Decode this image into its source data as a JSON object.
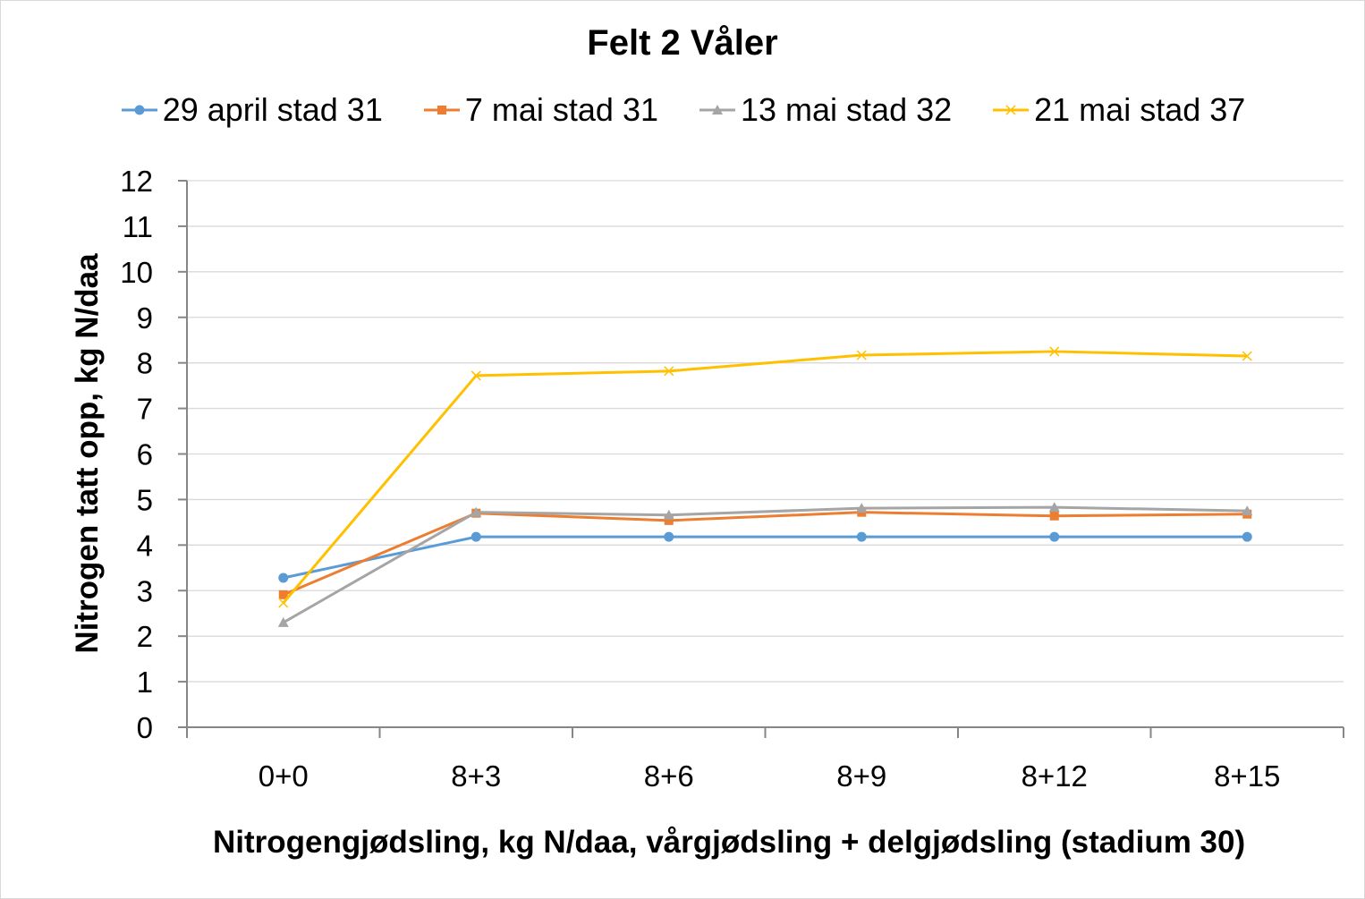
{
  "chart_data": {
    "type": "line",
    "title": "Felt 2 Våler",
    "xlabel": "Nitrogengjødsling, kg N/daa, vårgjødsling + delgjødsling (stadium 30)",
    "ylabel": "Nitrogen tatt opp, kg N/daa",
    "categories": [
      "0+0",
      "8+3",
      "8+6",
      "8+9",
      "8+12",
      "8+15"
    ],
    "ylim": [
      0,
      12
    ],
    "yticks": [
      "0",
      "1",
      "2",
      "3",
      "4",
      "5",
      "6",
      "7",
      "8",
      "9",
      "10",
      "11",
      "12"
    ],
    "grid": true,
    "legend_position": "top",
    "series": [
      {
        "name": "29 april stad 31",
        "color": "#5b9bd5",
        "marker": "circle",
        "values": [
          3.28,
          4.18,
          4.18,
          4.18,
          4.18,
          4.18
        ]
      },
      {
        "name": "7 mai stad 31",
        "color": "#ed7d31",
        "marker": "square",
        "values": [
          2.91,
          4.7,
          4.54,
          4.72,
          4.64,
          4.68
        ]
      },
      {
        "name": "13 mai stad 32",
        "color": "#a5a5a5",
        "marker": "triangle",
        "values": [
          2.3,
          4.72,
          4.66,
          4.81,
          4.83,
          4.75
        ]
      },
      {
        "name": "21 mai stad 37",
        "color": "#ffc000",
        "marker": "x",
        "values": [
          2.73,
          7.72,
          7.82,
          8.17,
          8.25,
          8.15
        ]
      }
    ]
  }
}
